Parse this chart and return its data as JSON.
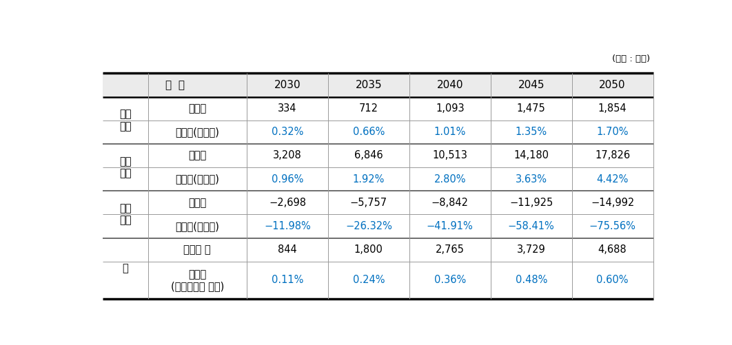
{
  "unit_label": "(단위 : 천톤)",
  "header_cols": [
    "2030",
    "2035",
    "2040",
    "2045",
    "2050"
  ],
  "group_header": "구  분",
  "groups": [
    {
      "label": "수송\n부문",
      "rows": [
        {
          "sublabel": "감축량",
          "values": [
            "334",
            "712",
            "1,093",
            "1,475",
            "1,854"
          ],
          "value_color": "#000000"
        },
        {
          "sublabel": "감축율(부문내)",
          "values": [
            "0.32%",
            "0.66%",
            "1.01%",
            "1.35%",
            "1.70%"
          ],
          "value_color": "#0070c0"
        }
      ]
    },
    {
      "label": "발전\n부문",
      "rows": [
        {
          "sublabel": "감축량",
          "values": [
            "3,208",
            "6,846",
            "10,513",
            "14,180",
            "17,826"
          ],
          "value_color": "#000000"
        },
        {
          "sublabel": "감축율(부문내)",
          "values": [
            "0.96%",
            "1.92%",
            "2.80%",
            "3.63%",
            "4.42%"
          ],
          "value_color": "#0070c0"
        }
      ]
    },
    {
      "label": "정유\n업종",
      "rows": [
        {
          "sublabel": "감축량",
          "values": [
            "−2,698",
            "−5,757",
            "−8,842",
            "−11,925",
            "−14,992"
          ],
          "value_color": "#000000"
        },
        {
          "sublabel": "감축율(업종내)",
          "values": [
            "−11.98%",
            "−26.32%",
            "−41.91%",
            "−58.41%",
            "−75.56%"
          ],
          "value_color": "#0070c0"
        }
      ]
    },
    {
      "label": "계",
      "rows": [
        {
          "sublabel": "감축량 계",
          "values": [
            "844",
            "1,800",
            "2,765",
            "3,729",
            "4,688"
          ],
          "value_color": "#000000"
        },
        {
          "sublabel": "감축율\n(국가총배출 대비)",
          "values": [
            "0.11%",
            "0.24%",
            "0.36%",
            "0.48%",
            "0.60%"
          ],
          "value_color": "#0070c0"
        }
      ]
    }
  ],
  "header_bg": "#ebebeb",
  "white_bg": "#ffffff",
  "thick_lw": 2.5,
  "medium_lw": 1.8,
  "thin_lw": 0.7,
  "line_color": "#000000",
  "thin_line_color": "#999999",
  "font_size": 10.5,
  "header_font_size": 11.0,
  "unit_font_size": 9.5
}
